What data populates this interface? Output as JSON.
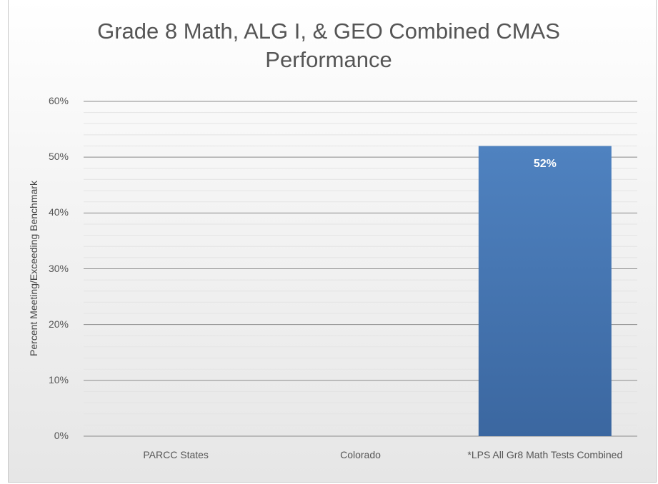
{
  "chart_data": {
    "type": "bar",
    "title": "Grade 8 Math, ALG I, & GEO Combined CMAS Performance",
    "y_label": "Percent Meeting/Exceeding Benchmark",
    "categories": [
      "PARCC States",
      "Colorado",
      "*LPS All Gr8 Math Tests Combined"
    ],
    "values": [
      null,
      null,
      52
    ],
    "value_labels": [
      null,
      null,
      "52%"
    ],
    "color": "#4a7ab9",
    "ylim": [
      0,
      60
    ],
    "yticks": [
      {
        "value": 0,
        "label": "0%"
      },
      {
        "value": 10,
        "label": "10%"
      },
      {
        "value": 20,
        "label": "20%"
      },
      {
        "value": 30,
        "label": "30%"
      },
      {
        "value": 40,
        "label": "40%"
      },
      {
        "value": 50,
        "label": "50%"
      },
      {
        "value": 60,
        "label": "60%"
      }
    ],
    "grid": true
  }
}
